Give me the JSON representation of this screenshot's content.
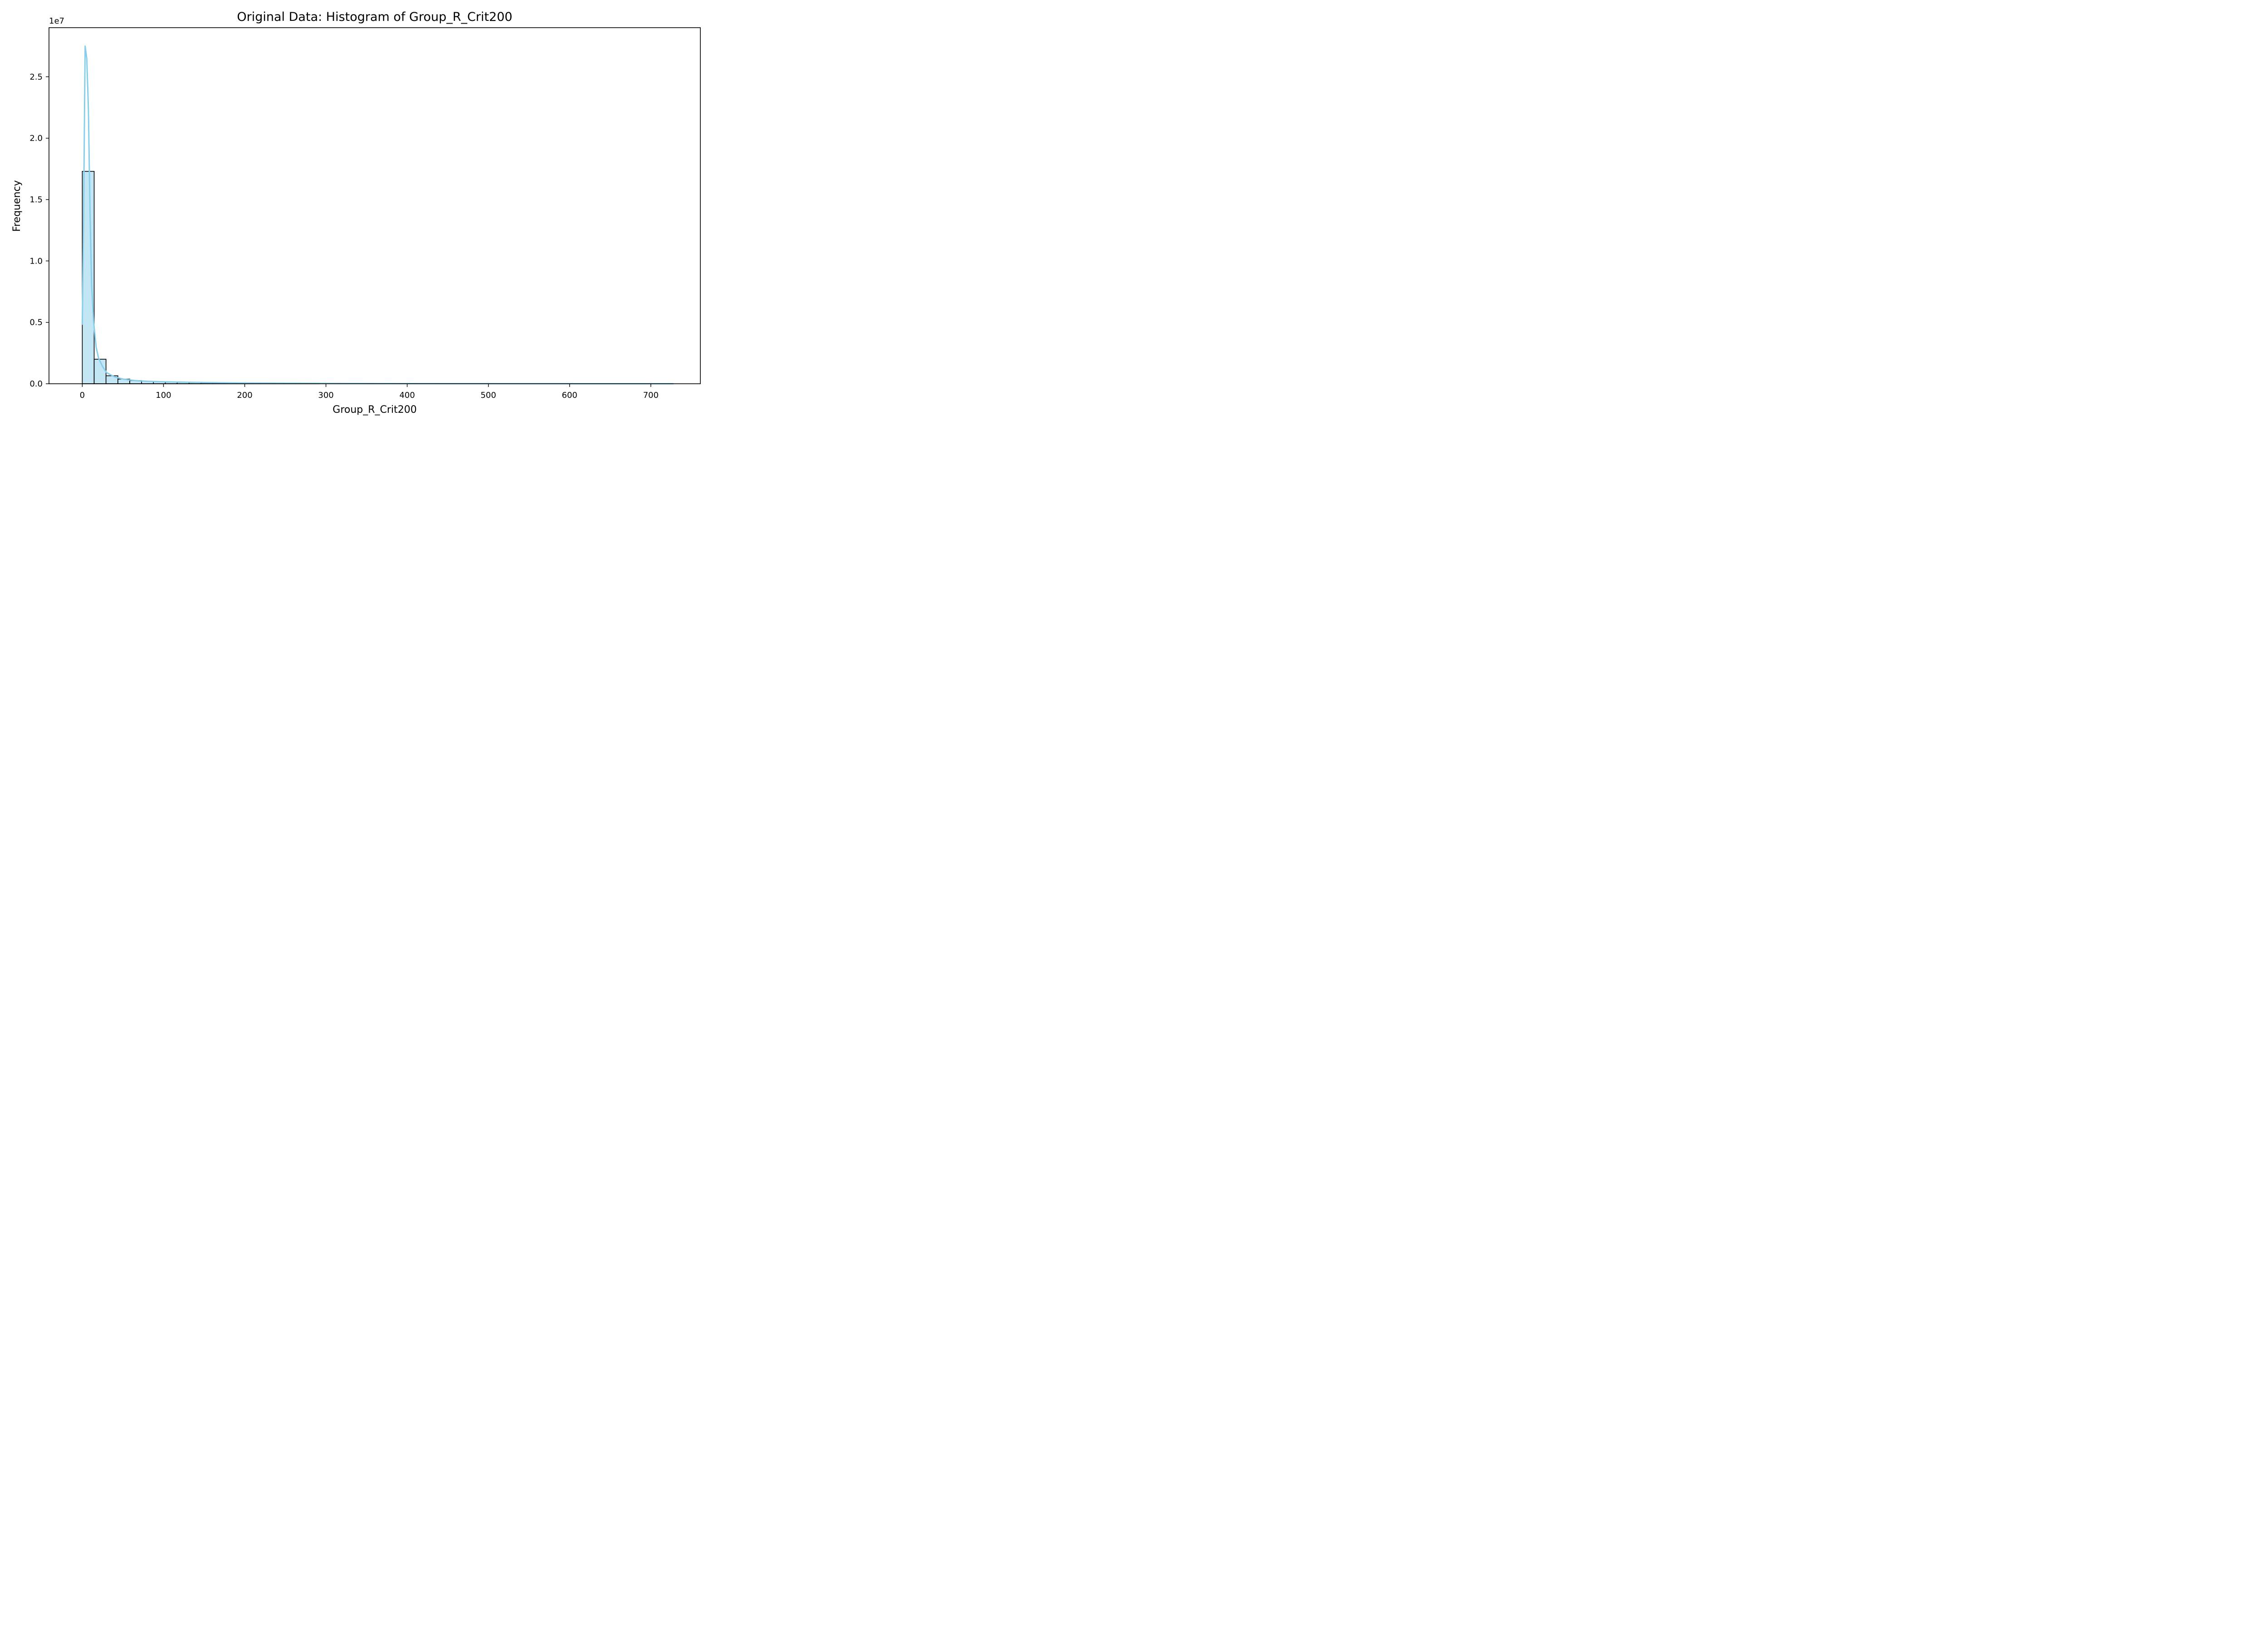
{
  "chart_data": {
    "type": "bar",
    "subtype": "histogram-with-kde",
    "title": "Original Data: Histogram of Group_R_Crit200",
    "xlabel": "Group_R_Crit200",
    "ylabel": "Frequency",
    "y_offset_label": "1e7",
    "xlim": [
      -41,
      761
    ],
    "ylim": [
      0,
      29000000
    ],
    "x_ticks": [
      0,
      100,
      200,
      300,
      400,
      500,
      600,
      700
    ],
    "x_tick_labels": [
      "0",
      "100",
      "200",
      "300",
      "400",
      "500",
      "600",
      "700"
    ],
    "y_ticks": [
      0,
      5000000,
      10000000,
      15000000,
      20000000,
      25000000
    ],
    "y_tick_labels": [
      "0.0",
      "0.5",
      "1.0",
      "1.5",
      "2.0",
      "2.5"
    ],
    "grid": false,
    "bar_color": "#87ceeb",
    "bar_edge_color": "#000000",
    "kde_color": "#87ceeb",
    "bins": [
      {
        "x0": 0.0,
        "x1": 14.6,
        "count": 17300000
      },
      {
        "x0": 14.6,
        "x1": 29.2,
        "count": 2000000
      },
      {
        "x0": 29.2,
        "x1": 43.8,
        "count": 650000
      },
      {
        "x0": 43.8,
        "x1": 58.4,
        "count": 380000
      },
      {
        "x0": 58.4,
        "x1": 73.0,
        "count": 260000
      },
      {
        "x0": 73.0,
        "x1": 87.6,
        "count": 200000
      },
      {
        "x0": 87.6,
        "x1": 102.2,
        "count": 160000
      },
      {
        "x0": 102.2,
        "x1": 116.8,
        "count": 130000
      },
      {
        "x0": 116.8,
        "x1": 131.4,
        "count": 110000
      },
      {
        "x0": 131.4,
        "x1": 146.0,
        "count": 90000
      },
      {
        "x0": 146.0,
        "x1": 160.6,
        "count": 75000
      },
      {
        "x0": 160.6,
        "x1": 175.2,
        "count": 62000
      },
      {
        "x0": 175.2,
        "x1": 189.8,
        "count": 52000
      },
      {
        "x0": 189.8,
        "x1": 204.4,
        "count": 44000
      },
      {
        "x0": 204.4,
        "x1": 219.0,
        "count": 37000
      },
      {
        "x0": 219.0,
        "x1": 233.6,
        "count": 31000
      },
      {
        "x0": 233.6,
        "x1": 248.2,
        "count": 26000
      },
      {
        "x0": 248.2,
        "x1": 262.8,
        "count": 22000
      },
      {
        "x0": 262.8,
        "x1": 277.4,
        "count": 19000
      },
      {
        "x0": 277.4,
        "x1": 292.0,
        "count": 16000
      }
    ],
    "kde": [
      {
        "x": 0,
        "y": 4800000
      },
      {
        "x": 1.5,
        "y": 13000000
      },
      {
        "x": 3.5,
        "y": 27500000
      },
      {
        "x": 5.5,
        "y": 26500000
      },
      {
        "x": 7.5,
        "y": 22500000
      },
      {
        "x": 9.5,
        "y": 14000000
      },
      {
        "x": 11.5,
        "y": 8000000
      },
      {
        "x": 14,
        "y": 5000000
      },
      {
        "x": 17,
        "y": 3000000
      },
      {
        "x": 20,
        "y": 2100000
      },
      {
        "x": 25,
        "y": 1400000
      },
      {
        "x": 30,
        "y": 900000
      },
      {
        "x": 40,
        "y": 550000
      },
      {
        "x": 50,
        "y": 380000
      },
      {
        "x": 65,
        "y": 260000
      },
      {
        "x": 80,
        "y": 200000
      },
      {
        "x": 100,
        "y": 160000
      },
      {
        "x": 130,
        "y": 120000
      },
      {
        "x": 160,
        "y": 90000
      },
      {
        "x": 200,
        "y": 65000
      },
      {
        "x": 250,
        "y": 45000
      },
      {
        "x": 300,
        "y": 33000
      },
      {
        "x": 400,
        "y": 20000
      },
      {
        "x": 500,
        "y": 12000
      },
      {
        "x": 600,
        "y": 7000
      },
      {
        "x": 728,
        "y": 4000
      }
    ]
  }
}
